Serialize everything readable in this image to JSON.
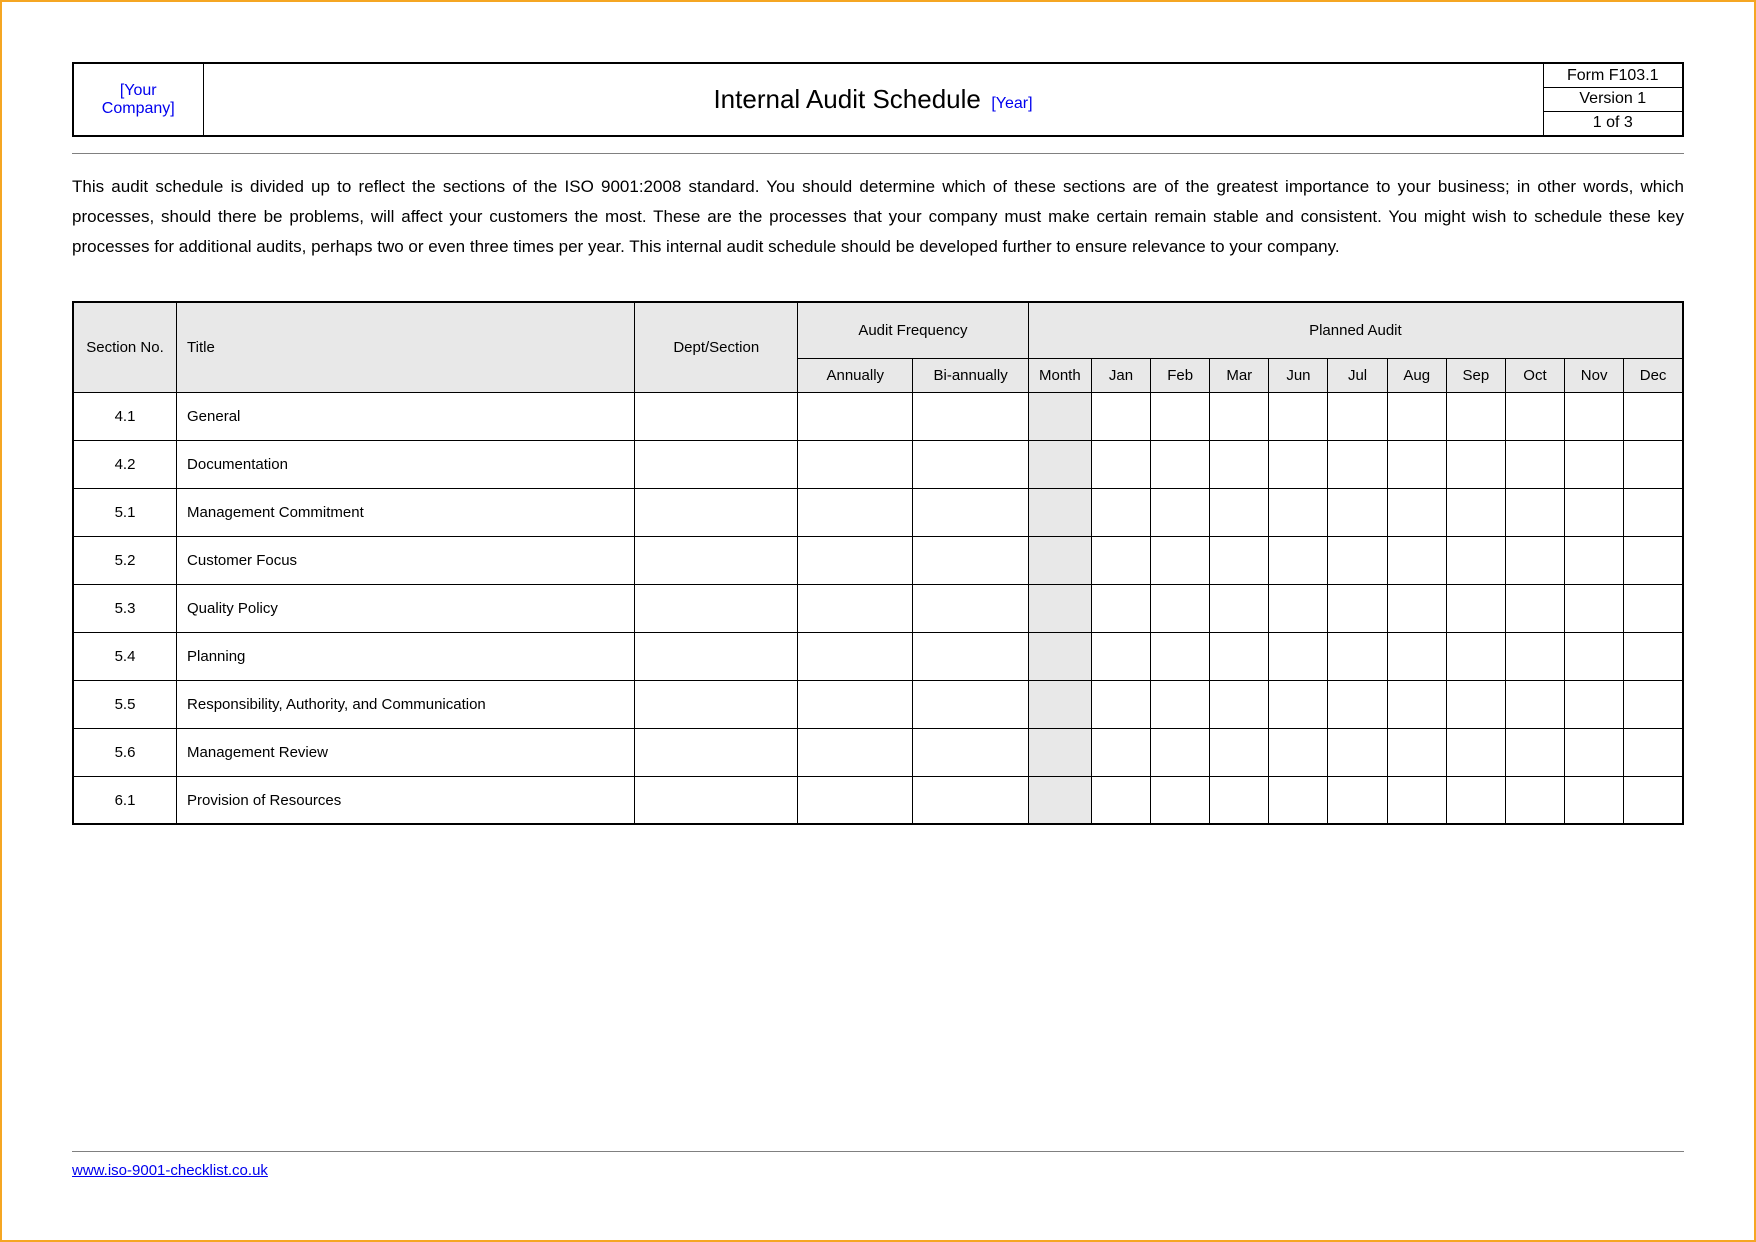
{
  "frame": {
    "border_color": "#f5a623",
    "background": "#ffffff"
  },
  "header": {
    "company_placeholder": "[Your Company]",
    "title": "Internal Audit Schedule",
    "year_placeholder": "[Year]",
    "form_no": "Form F103.1",
    "version": "Version 1",
    "page": "1 of 3",
    "link_color": "#0000ee",
    "title_fontsize": 26
  },
  "intro": "This audit schedule is divided up to reflect the sections of the ISO 9001:2008 standard. You should determine which of these sections are of the greatest importance to your business; in other words, which processes, should there be problems, will affect your customers the most. These are the processes that your company must make certain remain stable and consistent. You might wish to schedule these key processes for additional audits, perhaps two or even three times per year. This internal audit schedule should be developed further to ensure relevance to your company.",
  "table": {
    "header_bg": "#e8e8e8",
    "border_color": "#000000",
    "columns": {
      "section_no": "Section No.",
      "title": "Title",
      "dept": "Dept/Section",
      "audit_freq": "Audit Frequency",
      "planned_audit": "Planned Audit",
      "annually": "Annually",
      "biannually": "Bi-annually",
      "month": "Month",
      "months": [
        "Jan",
        "Feb",
        "Mar",
        "Jun",
        "Jul",
        "Aug",
        "Sep",
        "Oct",
        "Nov",
        "Dec"
      ]
    },
    "rows": [
      {
        "section": "4.1",
        "title": "General"
      },
      {
        "section": "4.2",
        "title": "Documentation"
      },
      {
        "section": "5.1",
        "title": "Management Commitment"
      },
      {
        "section": "5.2",
        "title": "Customer Focus"
      },
      {
        "section": "5.3",
        "title": "Quality Policy"
      },
      {
        "section": "5.4",
        "title": "Planning"
      },
      {
        "section": "5.5",
        "title": "Responsibility, Authority, and Communication"
      },
      {
        "section": "5.6",
        "title": "Management Review"
      },
      {
        "section": "6.1",
        "title": "Provision of Resources"
      }
    ]
  },
  "footer": {
    "url": "www.iso-9001-checklist.co.uk"
  }
}
